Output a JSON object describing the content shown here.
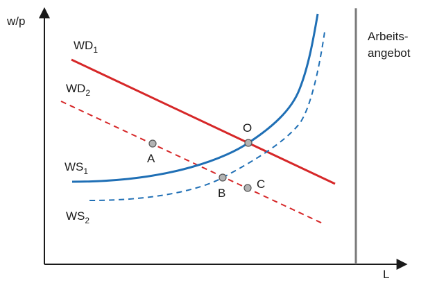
{
  "axes": {
    "y_label": "w/p",
    "x_label": "L"
  },
  "labor_supply_label": [
    "Arbeits-",
    "angebot"
  ],
  "curves": {
    "wd1": {
      "base": "WD",
      "sub": "1"
    },
    "wd2": {
      "base": "WD",
      "sub": "2"
    },
    "ws1": {
      "base": "WS",
      "sub": "1"
    },
    "ws2": {
      "base": "WS",
      "sub": "2"
    }
  },
  "points": {
    "o": "O",
    "a": "A",
    "b": "B",
    "c": "C"
  },
  "colors": {
    "wage_demand": "#d62728",
    "wage_setting": "#1f6fb5",
    "axis": "#1a1a1a",
    "labor_supply": "#7a7a7a",
    "point_fill": "#b3b3b3",
    "point_stroke": "#555555"
  }
}
